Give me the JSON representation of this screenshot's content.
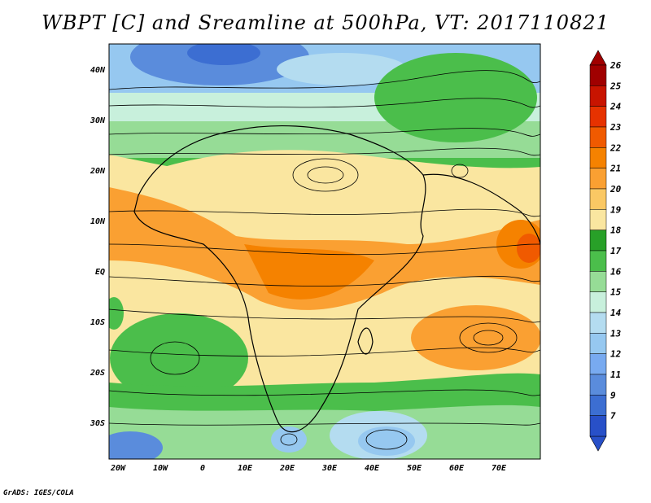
{
  "title": "WBPT [C] and Sreamline at 500hPa, VT: 2017110821",
  "footer": "GrADS: IGES/COLA",
  "map": {
    "lat_labels": [
      "40N",
      "30N",
      "20N",
      "10N",
      "EQ",
      "10S",
      "20S",
      "30S"
    ],
    "lon_labels": [
      "20W",
      "10W",
      "0",
      "10E",
      "20E",
      "30E",
      "40E",
      "50E",
      "60E",
      "70E"
    ]
  },
  "colorbar": {
    "labels": [
      "26",
      "25",
      "24",
      "23",
      "22",
      "21",
      "20",
      "19",
      "18",
      "17",
      "16",
      "15",
      "14",
      "13",
      "12",
      "11",
      "9",
      "7"
    ],
    "colors": [
      "#a00000",
      "#c81400",
      "#e63200",
      "#f05a00",
      "#f58200",
      "#faa032",
      "#fac864",
      "#fae6a0",
      "#28a028",
      "#4bbe4b",
      "#96dc96",
      "#c8f0dc",
      "#b4dcf0",
      "#96c8f0",
      "#78aaf0",
      "#5a8cdc",
      "#3c6ed2",
      "#2850c8"
    ],
    "top_color": "#a00000",
    "bottom_color": "#2850c8"
  }
}
